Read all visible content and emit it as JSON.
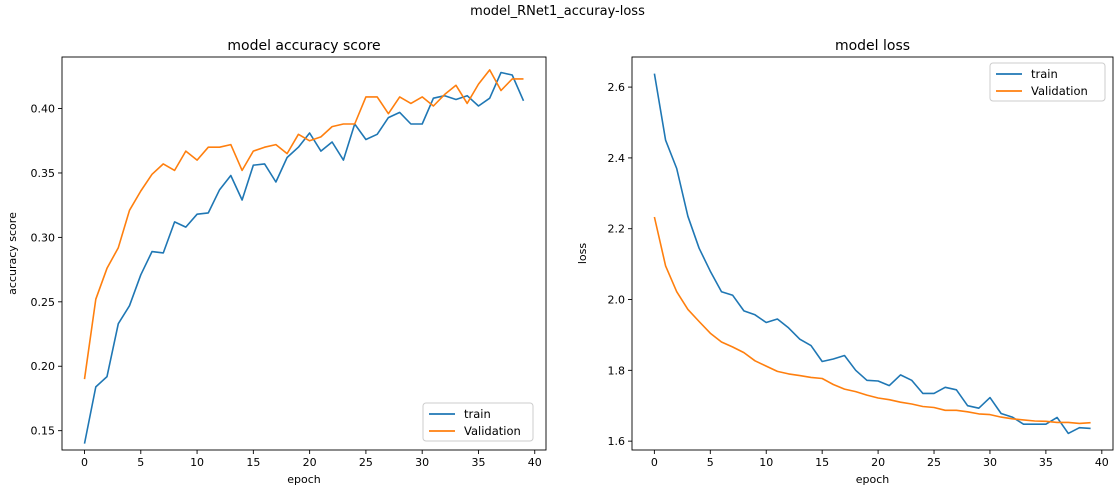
{
  "figure": {
    "suptitle": "model_RNet1_accuray-loss"
  },
  "colors": {
    "train": "#1f77b4",
    "validation": "#ff7f0e",
    "axis": "#000000"
  },
  "chart_data": [
    {
      "type": "line",
      "title": "model accuracy score",
      "xlabel": "epoch",
      "ylabel": "accuracy score",
      "xlim": [
        -2,
        41
      ],
      "ylim": [
        0.135,
        0.44
      ],
      "xticks": [
        0,
        5,
        10,
        15,
        20,
        25,
        30,
        35,
        40
      ],
      "yticks": [
        0.15,
        0.2,
        0.25,
        0.3,
        0.35,
        0.4
      ],
      "ytick_labels": [
        "0.15",
        "0.20",
        "0.25",
        "0.30",
        "0.35",
        "0.40"
      ],
      "grid": false,
      "legend": "lower-right",
      "x": [
        0,
        1,
        2,
        3,
        4,
        5,
        6,
        7,
        8,
        9,
        10,
        11,
        12,
        13,
        14,
        15,
        16,
        17,
        18,
        19,
        20,
        21,
        22,
        23,
        24,
        25,
        26,
        27,
        28,
        29,
        30,
        31,
        32,
        33,
        34,
        35,
        36,
        37,
        38,
        39
      ],
      "series": [
        {
          "name": "train",
          "color": "#1f77b4",
          "values": [
            0.14,
            0.184,
            0.192,
            0.233,
            0.247,
            0.271,
            0.289,
            0.288,
            0.312,
            0.308,
            0.318,
            0.319,
            0.337,
            0.348,
            0.329,
            0.356,
            0.357,
            0.343,
            0.362,
            0.37,
            0.381,
            0.367,
            0.374,
            0.36,
            0.388,
            0.376,
            0.38,
            0.393,
            0.397,
            0.388,
            0.388,
            0.408,
            0.41,
            0.407,
            0.41,
            0.402,
            0.408,
            0.428,
            0.426,
            0.406
          ]
        },
        {
          "name": "Validation",
          "color": "#ff7f0e",
          "values": [
            0.19,
            0.252,
            0.276,
            0.292,
            0.321,
            0.336,
            0.349,
            0.357,
            0.352,
            0.367,
            0.36,
            0.37,
            0.37,
            0.372,
            0.352,
            0.367,
            0.37,
            0.372,
            0.365,
            0.38,
            0.375,
            0.378,
            0.386,
            0.388,
            0.388,
            0.409,
            0.409,
            0.396,
            0.409,
            0.404,
            0.409,
            0.402,
            0.411,
            0.418,
            0.404,
            0.419,
            0.43,
            0.414,
            0.423,
            0.423
          ]
        }
      ]
    },
    {
      "type": "line",
      "title": "model loss",
      "xlabel": "epoch",
      "ylabel": "loss",
      "xlim": [
        -2,
        41
      ],
      "ylim": [
        1.575,
        2.685
      ],
      "xticks": [
        0,
        5,
        10,
        15,
        20,
        25,
        30,
        35,
        40
      ],
      "yticks": [
        1.6,
        1.8,
        2.0,
        2.2,
        2.4,
        2.6
      ],
      "ytick_labels": [
        "1.6",
        "1.8",
        "2.0",
        "2.2",
        "2.4",
        "2.6"
      ],
      "grid": false,
      "legend": "upper-right",
      "x": [
        0,
        1,
        2,
        3,
        4,
        5,
        6,
        7,
        8,
        9,
        10,
        11,
        12,
        13,
        14,
        15,
        16,
        17,
        18,
        19,
        20,
        21,
        22,
        23,
        24,
        25,
        26,
        27,
        28,
        29,
        30,
        31,
        32,
        33,
        34,
        35,
        36,
        37,
        38,
        39
      ],
      "series": [
        {
          "name": "train",
          "color": "#1f77b4",
          "values": [
            2.638,
            2.45,
            2.37,
            2.235,
            2.145,
            2.08,
            2.022,
            2.012,
            1.968,
            1.957,
            1.935,
            1.945,
            1.92,
            1.888,
            1.87,
            1.825,
            1.832,
            1.842,
            1.8,
            1.772,
            1.77,
            1.757,
            1.787,
            1.772,
            1.735,
            1.735,
            1.752,
            1.745,
            1.7,
            1.693,
            1.723,
            1.678,
            1.668,
            1.648,
            1.648,
            1.648,
            1.667,
            1.622,
            1.638,
            1.636
          ]
        },
        {
          "name": "Validation",
          "color": "#ff7f0e",
          "values": [
            2.233,
            2.095,
            2.022,
            1.972,
            1.938,
            1.905,
            1.88,
            1.866,
            1.85,
            1.827,
            1.812,
            1.797,
            1.79,
            1.785,
            1.78,
            1.777,
            1.76,
            1.747,
            1.74,
            1.73,
            1.722,
            1.717,
            1.71,
            1.705,
            1.698,
            1.695,
            1.687,
            1.687,
            1.683,
            1.677,
            1.675,
            1.668,
            1.663,
            1.66,
            1.657,
            1.656,
            1.653,
            1.653,
            1.65,
            1.652
          ]
        }
      ]
    }
  ]
}
